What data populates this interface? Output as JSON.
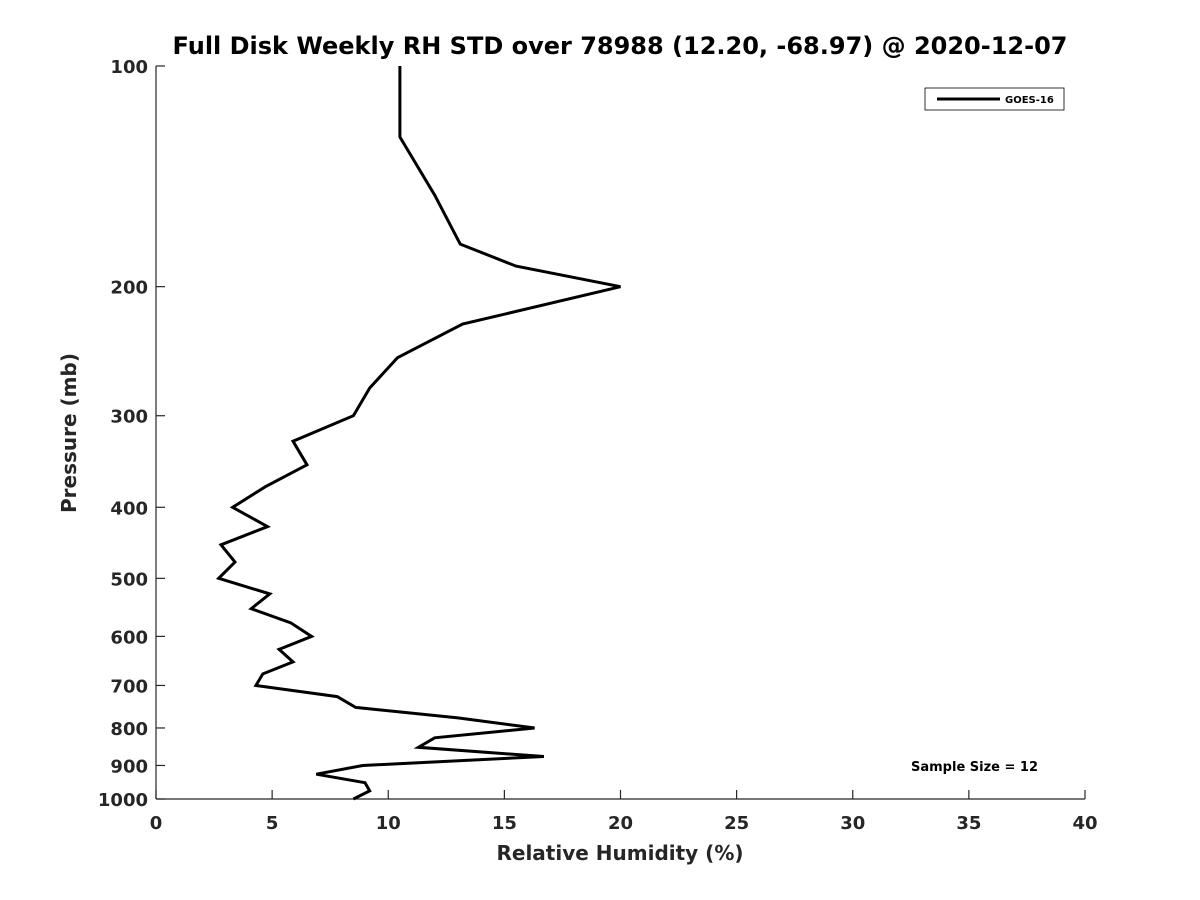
{
  "chart_data": {
    "type": "line",
    "title": "Full Disk Weekly RH STD over 78988 (12.20, -68.97) @ 2020-12-07",
    "xlabel": "Relative Humidity (%)",
    "ylabel": "Pressure (mb)",
    "xlim": [
      0,
      40
    ],
    "ylim": [
      1000,
      100
    ],
    "y_scale": "log",
    "y_inverted": true,
    "x_ticks": [
      "0",
      "5",
      "10",
      "15",
      "20",
      "25",
      "30",
      "35",
      "40"
    ],
    "y_ticks": [
      "100",
      "200",
      "300",
      "400",
      "500",
      "600",
      "700",
      "800",
      "900",
      "1000"
    ],
    "grid": false,
    "legend_position": "top-right",
    "annotation": "Sample Size = 12",
    "series": [
      {
        "name": "GOES-16",
        "color": "#000000",
        "points": [
          {
            "p": 100,
            "rh": 10.5
          },
          {
            "p": 125,
            "rh": 10.5
          },
          {
            "p": 150,
            "rh": 12.0
          },
          {
            "p": 175,
            "rh": 13.1
          },
          {
            "p": 187.5,
            "rh": 15.5
          },
          {
            "p": 200,
            "rh": 20.0
          },
          {
            "p": 225,
            "rh": 13.2
          },
          {
            "p": 250,
            "rh": 10.4
          },
          {
            "p": 275,
            "rh": 9.2
          },
          {
            "p": 300,
            "rh": 8.5
          },
          {
            "p": 325,
            "rh": 5.9
          },
          {
            "p": 350,
            "rh": 6.5
          },
          {
            "p": 375,
            "rh": 4.7
          },
          {
            "p": 400,
            "rh": 3.3
          },
          {
            "p": 425,
            "rh": 4.8
          },
          {
            "p": 450,
            "rh": 2.8
          },
          {
            "p": 475,
            "rh": 3.4
          },
          {
            "p": 500,
            "rh": 2.7
          },
          {
            "p": 525,
            "rh": 4.9
          },
          {
            "p": 550,
            "rh": 4.1
          },
          {
            "p": 575,
            "rh": 5.8
          },
          {
            "p": 600,
            "rh": 6.7
          },
          {
            "p": 625,
            "rh": 5.3
          },
          {
            "p": 650,
            "rh": 5.9
          },
          {
            "p": 675,
            "rh": 4.6
          },
          {
            "p": 700,
            "rh": 4.3
          },
          {
            "p": 725,
            "rh": 7.8
          },
          {
            "p": 750,
            "rh": 8.6
          },
          {
            "p": 775,
            "rh": 13.0
          },
          {
            "p": 800,
            "rh": 16.3
          },
          {
            "p": 825,
            "rh": 12.0
          },
          {
            "p": 850,
            "rh": 11.3
          },
          {
            "p": 875,
            "rh": 16.7
          },
          {
            "p": 900,
            "rh": 8.9
          },
          {
            "p": 925,
            "rh": 6.9
          },
          {
            "p": 950,
            "rh": 9.0
          },
          {
            "p": 975,
            "rh": 9.2
          },
          {
            "p": 1000,
            "rh": 8.5
          }
        ]
      }
    ]
  }
}
